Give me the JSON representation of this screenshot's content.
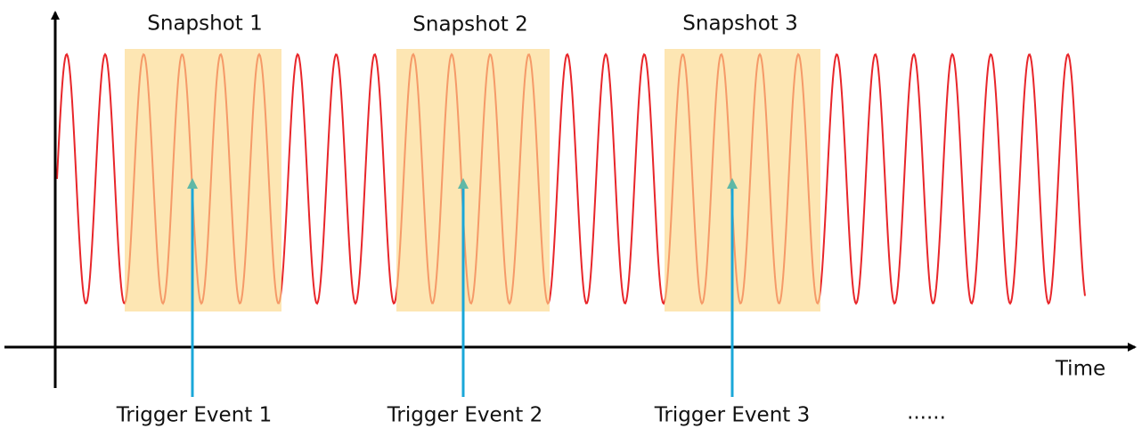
{
  "snapshots": [
    {
      "label": "Snapshot 1"
    },
    {
      "label": "Snapshot 2"
    },
    {
      "label": "Snapshot 3"
    }
  ],
  "triggers": [
    {
      "label": "Trigger Event 1"
    },
    {
      "label": "Trigger Event 2"
    },
    {
      "label": "Trigger Event 3"
    }
  ],
  "axis": {
    "x_label": "Time"
  },
  "ellipsis": "......"
}
